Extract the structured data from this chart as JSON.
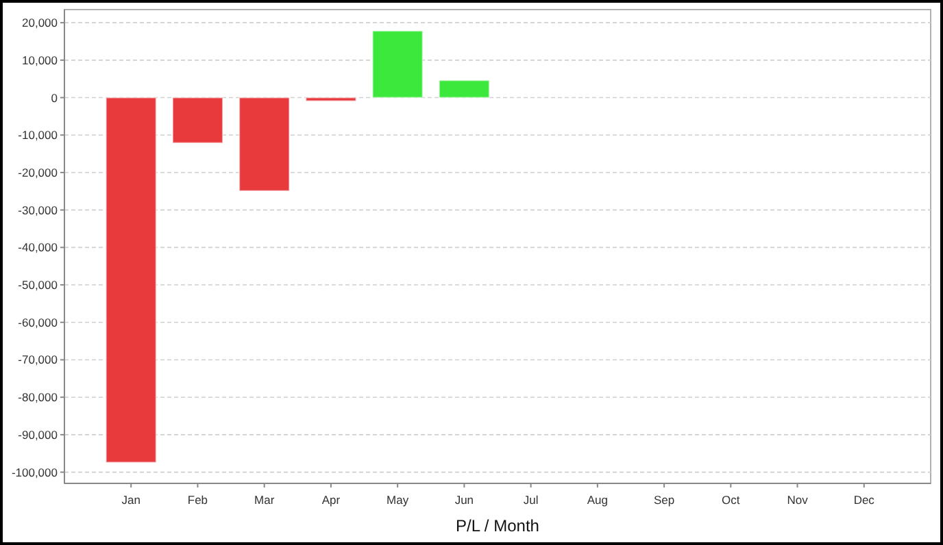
{
  "chart_data": {
    "type": "bar",
    "xlabel": "P/L / Month",
    "categories": [
      "Jan",
      "Feb",
      "Mar",
      "Apr",
      "May",
      "Jun",
      "Jul",
      "Aug",
      "Sep",
      "Oct",
      "Nov",
      "Dec"
    ],
    "values": [
      -97400,
      -12100,
      -24900,
      -900,
      17800,
      4600,
      null,
      null,
      null,
      null,
      null,
      null
    ],
    "colors": [
      "#e8393d",
      "#e8393d",
      "#e8393d",
      "#e8393d",
      "#3de83d",
      "#3de83d",
      null,
      null,
      null,
      null,
      null,
      null
    ],
    "ylim": [
      -103000,
      23500
    ],
    "yticks": [
      {
        "value": -100000,
        "label": "-100,000"
      },
      {
        "value": -90000,
        "label": "-90,000"
      },
      {
        "value": -80000,
        "label": "-80,000"
      },
      {
        "value": -70000,
        "label": "-70,000"
      },
      {
        "value": -60000,
        "label": "-60,000"
      },
      {
        "value": -50000,
        "label": "-50,000"
      },
      {
        "value": -40000,
        "label": "-40,000"
      },
      {
        "value": -30000,
        "label": "-30,000"
      },
      {
        "value": -20000,
        "label": "-20,000"
      },
      {
        "value": -10000,
        "label": "-10,000"
      },
      0,
      {
        "value": 10000,
        "label": "10,000"
      },
      {
        "value": 20000,
        "label": "20,000"
      }
    ],
    "grid": "y"
  }
}
